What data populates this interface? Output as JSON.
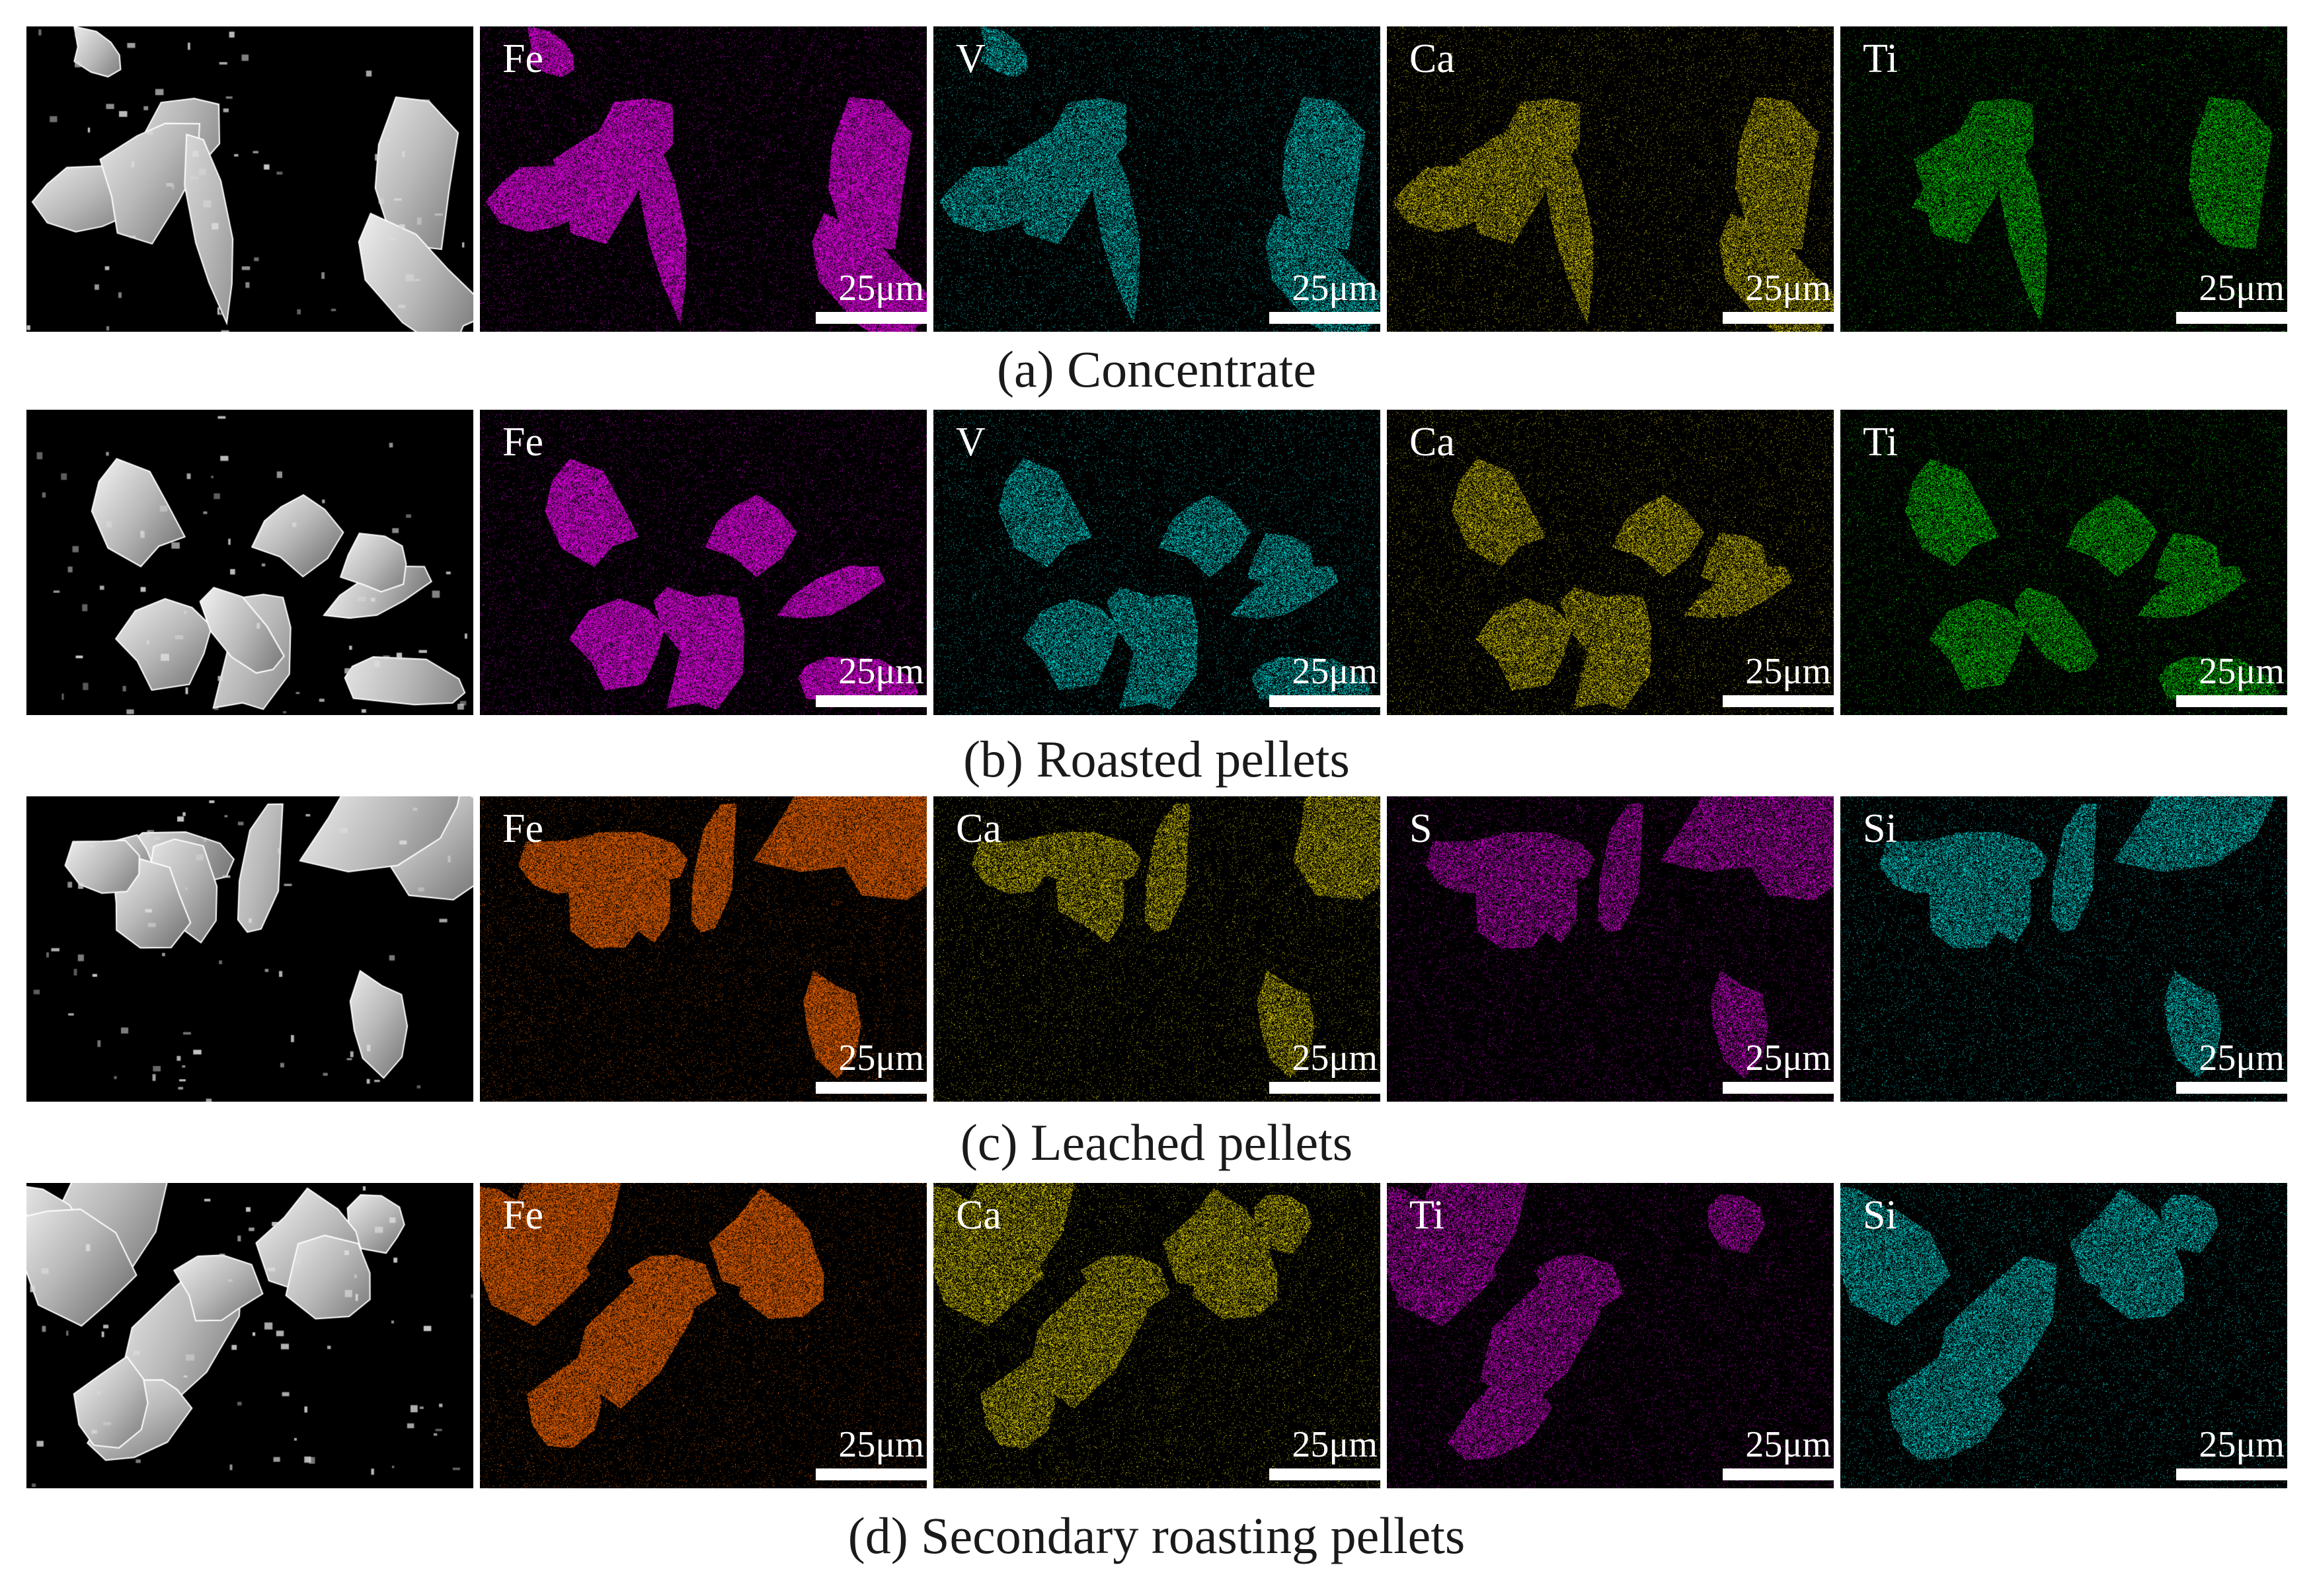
{
  "rows": [
    {
      "caption": "(a) Concentrate",
      "panels": [
        {
          "type": "sem",
          "label": "",
          "scale": ""
        },
        {
          "type": "map",
          "label": "Fe",
          "color": "#ff00ff",
          "scale": "25μm"
        },
        {
          "type": "map",
          "label": "V",
          "color": "#00ffff",
          "scale": "25μm"
        },
        {
          "type": "map",
          "label": "Ca",
          "color": "#ffee00",
          "scale": "25μm"
        },
        {
          "type": "map",
          "label": "Ti",
          "color": "#00ff00",
          "scale": "25μm"
        }
      ]
    },
    {
      "caption": "(b) Roasted pellets",
      "panels": [
        {
          "type": "sem",
          "label": "",
          "scale": ""
        },
        {
          "type": "map",
          "label": "Fe",
          "color": "#ff00ff",
          "scale": "25μm"
        },
        {
          "type": "map",
          "label": "V",
          "color": "#00ffff",
          "scale": "25μm"
        },
        {
          "type": "map",
          "label": "Ca",
          "color": "#ffee00",
          "scale": "25μm"
        },
        {
          "type": "map",
          "label": "Ti",
          "color": "#00ff00",
          "scale": "25μm"
        }
      ]
    },
    {
      "caption": "(c) Leached pellets",
      "panels": [
        {
          "type": "sem",
          "label": "",
          "scale": ""
        },
        {
          "type": "map",
          "label": "Fe",
          "color": "#ff6a00",
          "scale": "25μm"
        },
        {
          "type": "map",
          "label": "Ca",
          "color": "#ffee00",
          "scale": "25μm"
        },
        {
          "type": "map",
          "label": "S",
          "color": "#ff00ff",
          "scale": "25μm"
        },
        {
          "type": "map",
          "label": "Si",
          "color": "#00ffff",
          "scale": "25μm"
        }
      ]
    },
    {
      "caption": "(d) Secondary roasting pellets",
      "panels": [
        {
          "type": "sem",
          "label": "",
          "scale": ""
        },
        {
          "type": "map",
          "label": "Fe",
          "color": "#ff6a00",
          "scale": "25μm"
        },
        {
          "type": "map",
          "label": "Ca",
          "color": "#ffee00",
          "scale": "25μm"
        },
        {
          "type": "map",
          "label": "Ti",
          "color": "#ff00ff",
          "scale": "25μm"
        },
        {
          "type": "map",
          "label": "Si",
          "color": "#00ffff",
          "scale": "25μm"
        }
      ]
    }
  ]
}
